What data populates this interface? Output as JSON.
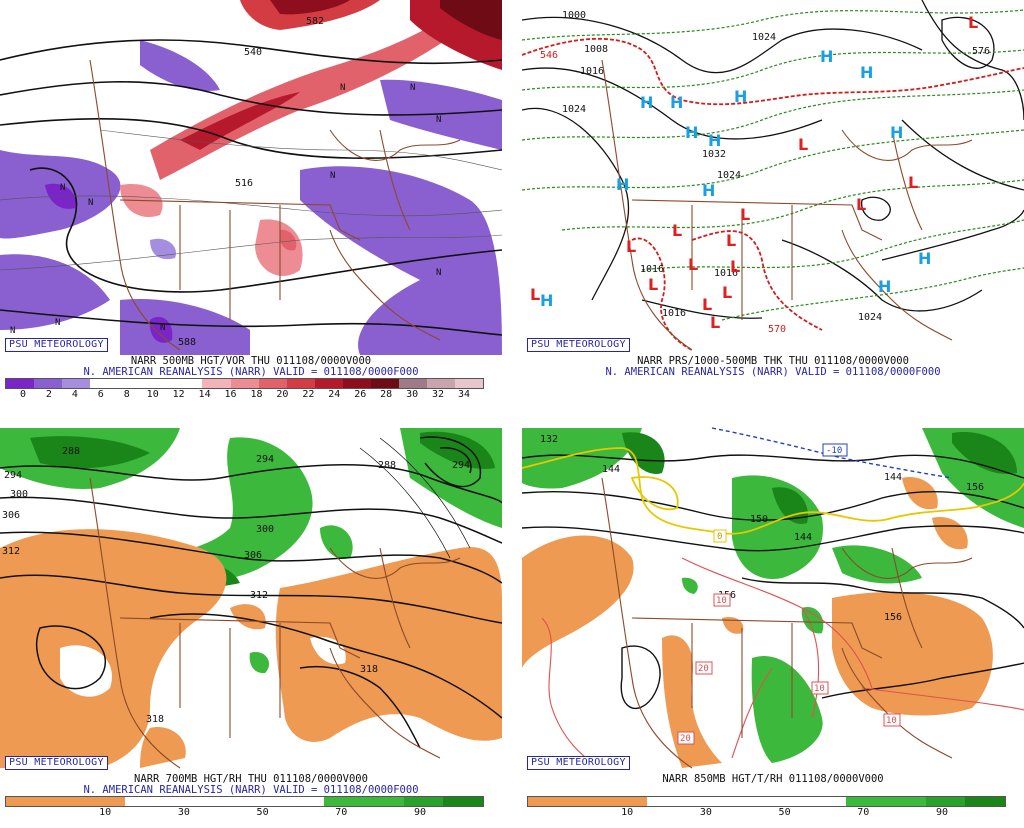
{
  "panels": [
    {
      "id": "vor500",
      "badge": "PSU METEOROLOGY",
      "caption_line1": "NARR 500MB HGT/VOR THU 011108/0000V000",
      "caption_line2": "N. AMERICAN REANALYSIS (NARR) VALID = 011108/0000F000",
      "colorbar": {
        "colors": [
          "#7a24c9",
          "#8a5fcf",
          "#a58de0",
          "#ffffff",
          "#ffffff",
          "#ffffff",
          "#ffffff",
          "#f4b3b8",
          "#ee8c93",
          "#e2626b",
          "#d43c44",
          "#b6192b",
          "#8e0e1e",
          "#6e0b14",
          "#a07a86",
          "#c9a3ad",
          "#e7c6cc"
        ],
        "ticks": [
          "0",
          "2",
          "4",
          "6",
          "8",
          "10",
          "12",
          "14",
          "16",
          "18",
          "20",
          "22",
          "24",
          "26",
          "28",
          "30",
          "32",
          "34"
        ]
      },
      "contour_labels": [
        "540",
        "516",
        "588",
        "582"
      ],
      "map_letters": [
        "N",
        "N",
        "N",
        "N",
        "N",
        "N",
        "N",
        "N",
        "N",
        "N"
      ]
    },
    {
      "id": "prs1000",
      "badge": "PSU METEOROLOGY",
      "caption_line1": "NARR PRS/1000-500MB THK THU 011108/0000V000",
      "caption_line2": "N. AMERICAN REANALYSIS (NARR) VALID = 011108/0000F000",
      "contour_labels": [
        "1000",
        "1008",
        "1016",
        "1024",
        "1032",
        "1024",
        "1016",
        "1016",
        "1016",
        "1024",
        "546",
        "570",
        "576",
        "1024"
      ],
      "highs": [
        "H",
        "H",
        "H",
        "H",
        "H",
        "H",
        "H",
        "H",
        "H",
        "H",
        "H",
        "H",
        "H"
      ],
      "lows": [
        "L",
        "L",
        "L",
        "L",
        "L",
        "L",
        "L",
        "L",
        "L",
        "L",
        "L",
        "L",
        "L",
        "L",
        "L"
      ]
    },
    {
      "id": "rh700",
      "badge": "PSU METEOROLOGY",
      "caption_line1": "NARR 700MB HGT/RH THU 011108/0000V000",
      "caption_line2": "N. AMERICAN REANALYSIS (NARR) VALID = 011108/0000F000",
      "colorbar": {
        "colors": [
          "#ef9a52",
          "#ef9a52",
          "#ef9a52",
          "#ffffff",
          "#ffffff",
          "#ffffff",
          "#ffffff",
          "#ffffff",
          "#3cb83c",
          "#3cb83c",
          "#2aa12a",
          "#1a861a"
        ],
        "ticks": [
          "10",
          "30",
          "50",
          "70",
          "90"
        ]
      },
      "contour_labels": [
        "288",
        "294",
        "300",
        "306",
        "312",
        "294",
        "300",
        "306",
        "312",
        "318",
        "318",
        "288",
        "294"
      ]
    },
    {
      "id": "t850",
      "badge": "PSU METEOROLOGY",
      "caption_line1": "NARR 850MB HGT/T/RH 011108/0000V000",
      "colorbar": {
        "colors": [
          "#ef9a52",
          "#ef9a52",
          "#ef9a52",
          "#ffffff",
          "#ffffff",
          "#ffffff",
          "#ffffff",
          "#ffffff",
          "#3cb83c",
          "#3cb83c",
          "#2aa12a",
          "#1a861a"
        ],
        "ticks": [
          "10",
          "30",
          "50",
          "70",
          "90"
        ]
      },
      "contour_labels": [
        "132",
        "144",
        "150",
        "144",
        "156",
        "156",
        "144",
        "156"
      ],
      "temp_boxes": [
        "-10",
        "0",
        "10",
        "20",
        "20",
        "10",
        "10"
      ]
    }
  ]
}
